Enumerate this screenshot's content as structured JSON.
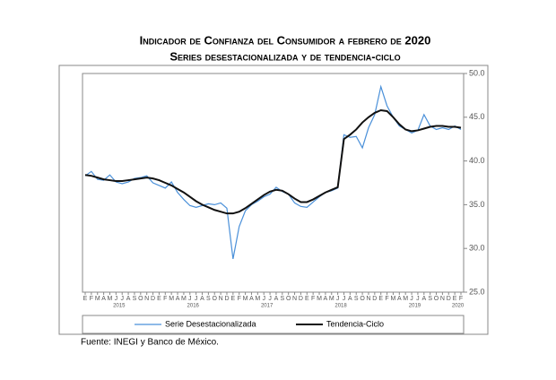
{
  "chart_data": {
    "type": "line",
    "title": "Indicador de Confianza del Consumidor a febrero de 2020",
    "subtitle": "Series desestacionalizada y de tendencia-ciclo",
    "categories": [
      "E",
      "F",
      "M",
      "A",
      "M",
      "J",
      "J",
      "A",
      "S",
      "O",
      "N",
      "D",
      "E",
      "F",
      "M",
      "A",
      "M",
      "J",
      "J",
      "A",
      "S",
      "O",
      "N",
      "D",
      "E",
      "F",
      "M",
      "A",
      "M",
      "J",
      "J",
      "A",
      "S",
      "O",
      "N",
      "D",
      "E",
      "F",
      "M",
      "A",
      "M",
      "J",
      "J",
      "A",
      "S",
      "O",
      "N",
      "D",
      "E",
      "F",
      "M",
      "A",
      "M",
      "J",
      "J",
      "A",
      "S",
      "O",
      "N",
      "D",
      "E",
      "F"
    ],
    "year_labels": [
      "2015",
      "2016",
      "2017",
      "2018",
      "2019",
      "2020"
    ],
    "series": [
      {
        "name": "Serie Desestacionalizada",
        "color": "#4a90d9",
        "width": 1.2,
        "values": [
          38.3,
          38.8,
          37.9,
          37.8,
          38.4,
          37.6,
          37.4,
          37.6,
          38.0,
          38.1,
          38.3,
          37.5,
          37.2,
          36.9,
          37.6,
          36.4,
          35.6,
          34.9,
          34.7,
          34.9,
          35.1,
          35.0,
          35.2,
          34.6,
          28.8,
          32.5,
          34.3,
          35.0,
          35.4,
          35.9,
          36.2,
          37.0,
          36.5,
          36.2,
          35.2,
          34.8,
          34.7,
          35.3,
          35.9,
          36.4,
          36.6,
          36.9,
          43.0,
          42.7,
          42.8,
          41.5,
          43.8,
          45.3,
          48.5,
          46.3,
          45.0,
          44.0,
          43.6,
          43.2,
          43.5,
          45.3,
          44.0,
          43.6,
          43.8,
          43.6,
          44.0,
          43.6
        ]
      },
      {
        "name": "Tendencia-Ciclo",
        "color": "#111111",
        "width": 2,
        "values": [
          38.4,
          38.3,
          38.1,
          37.9,
          37.8,
          37.7,
          37.7,
          37.8,
          37.9,
          38.0,
          38.1,
          38.0,
          37.8,
          37.5,
          37.2,
          36.8,
          36.4,
          35.9,
          35.4,
          35.0,
          34.7,
          34.4,
          34.2,
          34.0,
          34.0,
          34.2,
          34.6,
          35.1,
          35.6,
          36.1,
          36.5,
          36.7,
          36.6,
          36.2,
          35.7,
          35.3,
          35.3,
          35.6,
          36.0,
          36.4,
          36.7,
          37.0,
          42.5,
          43.0,
          43.6,
          44.4,
          45.0,
          45.5,
          45.8,
          45.7,
          45.0,
          44.2,
          43.6,
          43.4,
          43.5,
          43.7,
          43.9,
          44.0,
          44.0,
          43.9,
          43.9,
          43.8
        ]
      }
    ],
    "ylim": [
      25,
      50
    ],
    "yticks": [
      {
        "value": 25,
        "label": "25.0"
      },
      {
        "value": 30,
        "label": "30.0"
      },
      {
        "value": 35,
        "label": "35.0"
      },
      {
        "value": 40,
        "label": "40.0"
      },
      {
        "value": 45,
        "label": "45.0"
      },
      {
        "value": 50,
        "label": "50.0"
      }
    ],
    "source": "Fuente: INEGI y Banco de México."
  }
}
